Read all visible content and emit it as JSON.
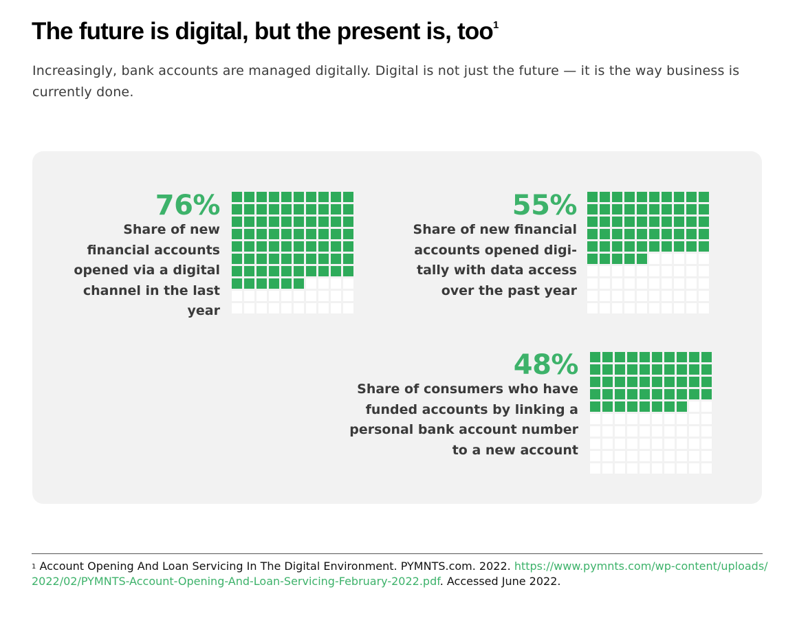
{
  "header": {
    "title": "The future is digital, but the present is, too",
    "title_footnote_marker": "1",
    "subtitle": "Increasingly, bank accounts are managed digitally. Digital is not just the future — it is the way business is currently done."
  },
  "colors": {
    "accent": "#3db26a",
    "filled_cell": "#2eab5a",
    "empty_cell": "#ffffff",
    "panel_background": "#f2f2f2",
    "body_text": "#3a3a3a"
  },
  "chart_data": [
    {
      "type": "waffle",
      "grid": {
        "rows": 10,
        "cols": 10
      },
      "value": 76,
      "unit": "%",
      "label": "76%",
      "description": "Share of new financial accounts opened via a digital channel in the last year"
    },
    {
      "type": "waffle",
      "grid": {
        "rows": 10,
        "cols": 10
      },
      "value": 55,
      "unit": "%",
      "label": "55%",
      "description": "Share of new financial accounts opened digi- tally with data access over the past year"
    },
    {
      "type": "waffle",
      "grid": {
        "rows": 10,
        "cols": 10
      },
      "value": 48,
      "unit": "%",
      "label": "48%",
      "description": "Share of consumers who have funded accounts by linking a personal bank account number to a new account"
    }
  ],
  "footnote": {
    "marker": "1",
    "text": "Account Opening And Loan Servicing In The Digital Environment. PYMNTS.com. 2022.",
    "link_text": "https://www.pymnts.com/wp-content/uploads/2022/02/PYMNTS-Account-Opening-And-Loan-Servicing-February-2022.pdf",
    "suffix": ". Accessed June 2022."
  }
}
